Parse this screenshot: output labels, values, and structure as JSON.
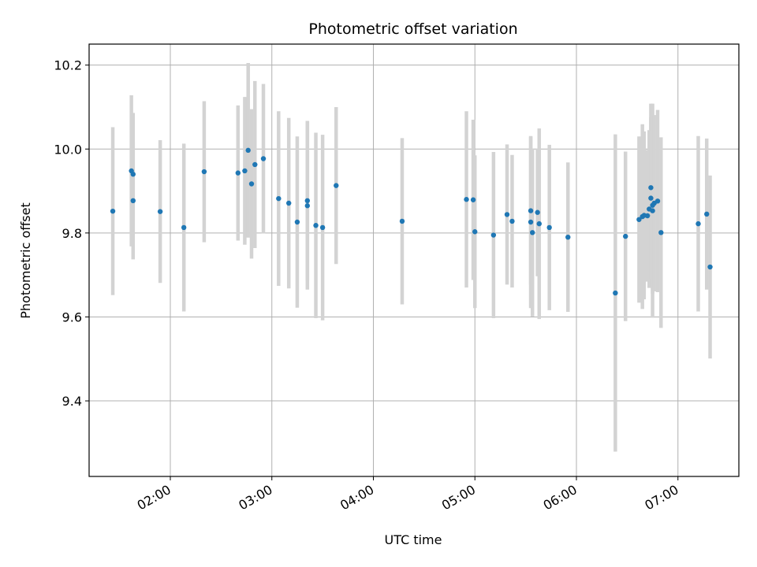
{
  "chart_data": {
    "type": "scatter",
    "title": "Photometric offset variation",
    "xlabel": "UTC time",
    "ylabel": "Photometric offset",
    "xlim": [
      "01:12",
      "07:36"
    ],
    "ylim": [
      9.22,
      10.25
    ],
    "xticks": [
      "02:00",
      "03:00",
      "04:00",
      "05:00",
      "06:00",
      "07:00"
    ],
    "yticks": [
      9.4,
      9.6,
      9.8,
      10.0,
      10.2
    ],
    "ytick_labels": [
      "9.4",
      "9.6",
      "9.8",
      "10.0",
      "10.2"
    ],
    "grid": true,
    "colors": {
      "points": "#1f77b4",
      "errorbars": "#d3d3d3",
      "grid": "#b0b0b0"
    },
    "series": [
      {
        "x": [
          "01:26",
          "01:37",
          "01:38",
          "01:38",
          "01:54",
          "02:08",
          "02:20",
          "02:40",
          "02:44",
          "02:46",
          "02:48",
          "02:50",
          "02:55",
          "03:04",
          "03:10",
          "03:15",
          "03:21",
          "03:21",
          "03:26",
          "03:30",
          "03:38",
          "04:17",
          "04:55",
          "04:59",
          "05:00",
          "05:11",
          "05:19",
          "05:22",
          "05:33",
          "05:33",
          "05:34",
          "05:37",
          "05:38",
          "05:44",
          "05:55",
          "06:23",
          "06:29",
          "06:37",
          "06:39",
          "06:40",
          "06:42",
          "06:43",
          "06:44",
          "06:44",
          "06:45",
          "06:45",
          "06:46",
          "06:48",
          "06:50",
          "07:12",
          "07:17",
          "07:19"
        ],
        "y": [
          9.852,
          9.948,
          9.877,
          9.94,
          9.851,
          9.813,
          9.946,
          9.943,
          9.948,
          9.997,
          9.917,
          9.963,
          9.977,
          9.882,
          9.871,
          9.826,
          9.877,
          9.865,
          9.818,
          9.813,
          9.913,
          9.828,
          9.88,
          9.879,
          9.803,
          9.795,
          9.844,
          9.828,
          9.853,
          9.826,
          9.801,
          9.849,
          9.822,
          9.813,
          9.79,
          9.657,
          9.792,
          9.832,
          9.839,
          9.842,
          9.841,
          9.857,
          9.908,
          9.883,
          9.853,
          9.866,
          9.871,
          9.876,
          9.801,
          9.822,
          9.845,
          9.719
        ],
        "yerr": [
          0.2,
          0.18,
          0.14,
          0.146,
          0.17,
          0.2,
          0.168,
          0.161,
          0.176,
          0.208,
          0.178,
          0.199,
          0.178,
          0.208,
          0.203,
          0.204,
          0.19,
          0.2,
          0.221,
          0.221,
          0.187,
          0.198,
          0.21,
          0.191,
          0.182,
          0.198,
          0.167,
          0.158,
          0.176,
          0.205,
          0.2,
          0.152,
          0.227,
          0.197,
          0.178,
          0.378,
          0.202,
          0.198,
          0.22,
          0.2,
          0.157,
          0.188,
          0.2,
          0.193,
          0.255,
          0.211,
          0.21,
          0.217,
          0.227,
          0.209,
          0.18,
          0.218
        ]
      }
    ]
  }
}
